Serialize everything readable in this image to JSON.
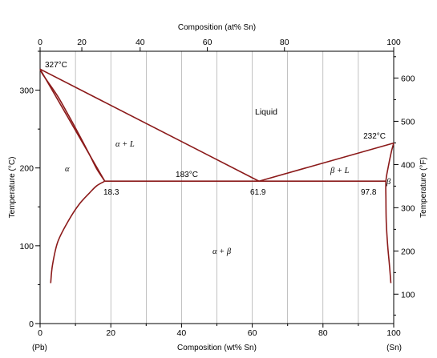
{
  "chart_data": {
    "type": "line",
    "xlabel": "Composition (wt% Sn)",
    "x2label": "Composition (at% Sn)",
    "ylabel": "Temperature (°C)",
    "y2label": "Temperature (°F)",
    "xlim": [
      0,
      100
    ],
    "ylim": [
      0,
      350
    ],
    "x_ticks": [
      "0",
      "20",
      "40",
      "60",
      "80",
      "100"
    ],
    "x_tick_values": [
      0,
      20,
      40,
      60,
      80,
      100
    ],
    "x2_ticks": [
      "0",
      "20",
      "40",
      "60",
      "80",
      "100"
    ],
    "x2_tick_positions_wt": [
      0,
      11.8,
      28.3,
      47.3,
      69.1,
      100
    ],
    "y_ticks": [
      "0",
      "100",
      "200",
      "300"
    ],
    "y_tick_values": [
      0,
      100,
      200,
      300
    ],
    "y2_ticks": [
      "100",
      "200",
      "300",
      "400",
      "500",
      "600"
    ],
    "y2_tick_values_c": [
      37.8,
      93.3,
      148.9,
      204.4,
      260,
      315.6
    ],
    "end_labels": {
      "left": "(Pb)",
      "right": "(Sn)"
    },
    "series": [
      {
        "x": [
          0,
          18.3
        ],
        "y": [
          327,
          183
        ]
      },
      {
        "x": [
          0,
          61.9
        ],
        "y": [
          327,
          183
        ]
      },
      {
        "x": [
          61.9,
          100
        ],
        "y": [
          183,
          232
        ]
      },
      {
        "x": [
          18.3,
          97.8
        ],
        "y": [
          183,
          183
        ]
      },
      {
        "x": [
          0,
          0.5,
          2,
          5,
          8,
          11,
          14,
          16,
          18.3
        ],
        "y": [
          327,
          322,
          312,
          292,
          268,
          243,
          217,
          199,
          183
        ]
      },
      {
        "x": [
          3,
          3.5,
          5,
          8,
          11,
          14,
          16,
          18.3
        ],
        "y": [
          52,
          75,
          105,
          132,
          153,
          168,
          177,
          183
        ]
      },
      {
        "x": [
          99.2,
          98.8,
          98.3,
          97.9,
          97.8,
          97.8,
          98.4,
          99.3,
          100
        ],
        "y": [
          52,
          75,
          100,
          130,
          160,
          183,
          200,
          220,
          232
        ]
      }
    ],
    "annotations": {
      "pb_melt": "327°C",
      "sn_melt": "232°C",
      "eutectic_temp": "183°C",
      "liquid": "Liquid",
      "alpha": "α",
      "beta": "β",
      "alpha_liquid": "α + L",
      "beta_liquid": "β + L",
      "alpha_beta": "α + β",
      "c_alpha": "18.3",
      "c_eutectic": "61.9",
      "c_beta": "97.8"
    },
    "colors": {
      "curve": "#8b1a1a",
      "grid": "#999999",
      "axis": "#000000"
    }
  }
}
